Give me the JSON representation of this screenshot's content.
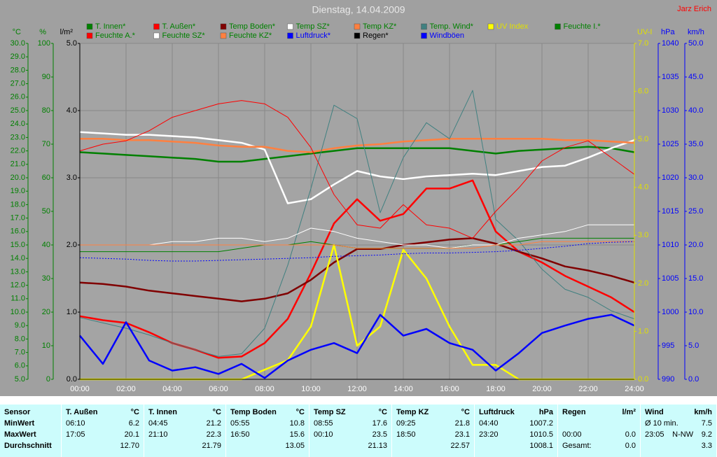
{
  "chart_data": {
    "type": "line",
    "title": "Dienstag, 14.04.2009",
    "author": "Jarz Erich",
    "x": [
      0,
      1,
      2,
      3,
      4,
      5,
      6,
      7,
      8,
      9,
      10,
      11,
      12,
      13,
      14,
      15,
      16,
      17,
      18,
      19,
      20,
      21,
      22,
      23,
      24
    ],
    "xlim": [
      0,
      24
    ],
    "xticks": [
      {
        "value": 0,
        "label": "00:00"
      },
      {
        "value": 2,
        "label": "02:00"
      },
      {
        "value": 4,
        "label": "04:00"
      },
      {
        "value": 6,
        "label": "06:00"
      },
      {
        "value": 8,
        "label": "08:00"
      },
      {
        "value": 10,
        "label": "10:00"
      },
      {
        "value": 12,
        "label": "12:00"
      },
      {
        "value": 14,
        "label": "14:00"
      },
      {
        "value": 16,
        "label": "16:00"
      },
      {
        "value": 18,
        "label": "18:00"
      },
      {
        "value": 20,
        "label": "20:00"
      },
      {
        "value": 22,
        "label": "22:00"
      },
      {
        "value": 24,
        "label": "24:00"
      }
    ],
    "grid": true,
    "axes": [
      {
        "label": "°C",
        "side": "left",
        "color": "#008000",
        "lim": [
          5,
          30
        ],
        "ticks": [
          {
            "value": 5,
            "label": "5.0"
          },
          {
            "value": 6,
            "label": "6.0"
          },
          {
            "value": 7,
            "label": "7.0"
          },
          {
            "value": 8,
            "label": "8.0"
          },
          {
            "value": 9,
            "label": "9.0"
          },
          {
            "value": 10,
            "label": "10.0"
          },
          {
            "value": 11,
            "label": "11.0"
          },
          {
            "value": 12,
            "label": "12.0"
          },
          {
            "value": 13,
            "label": "13.0"
          },
          {
            "value": 14,
            "label": "14.0"
          },
          {
            "value": 15,
            "label": "15.0"
          },
          {
            "value": 16,
            "label": "16.0"
          },
          {
            "value": 17,
            "label": "17.0"
          },
          {
            "value": 18,
            "label": "18.0"
          },
          {
            "value": 19,
            "label": "19.0"
          },
          {
            "value": 20,
            "label": "20.0"
          },
          {
            "value": 21,
            "label": "21.0"
          },
          {
            "value": 22,
            "label": "22.0"
          },
          {
            "value": 23,
            "label": "23.0"
          },
          {
            "value": 24,
            "label": "24.0"
          },
          {
            "value": 25,
            "label": "25.0"
          },
          {
            "value": 26,
            "label": "26.0"
          },
          {
            "value": 27,
            "label": "27.0"
          },
          {
            "value": 28,
            "label": "28.0"
          },
          {
            "value": 29,
            "label": "29.0"
          },
          {
            "value": 30,
            "label": "30.0"
          }
        ]
      },
      {
        "label": "%",
        "side": "left",
        "color": "#008000",
        "lim": [
          0,
          100
        ],
        "ticks": [
          0,
          10,
          20,
          30,
          40,
          50,
          60,
          70,
          80,
          90,
          100
        ]
      },
      {
        "label": "l/m²",
        "side": "left",
        "color": "#000000",
        "lim": [
          0,
          5
        ],
        "grid": true,
        "ticks": [
          {
            "value": 0,
            "label": "0.0"
          },
          {
            "value": 1,
            "label": "1.0"
          },
          {
            "value": 2,
            "label": "2.0"
          },
          {
            "value": 3,
            "label": "3.0"
          },
          {
            "value": 4,
            "label": "4.0"
          },
          {
            "value": 5,
            "label": "5.0"
          }
        ]
      },
      {
        "label": "UV-I",
        "side": "right",
        "color": "#e0e000",
        "lim": [
          0,
          7
        ],
        "ticks": [
          {
            "value": 0,
            "label": "0.0"
          },
          {
            "value": 1,
            "label": "1.0"
          },
          {
            "value": 2,
            "label": "2.0"
          },
          {
            "value": 3,
            "label": "3.0"
          },
          {
            "value": 4,
            "label": "4.0"
          },
          {
            "value": 5,
            "label": "5.0"
          },
          {
            "value": 6,
            "label": "6.0"
          },
          {
            "value": 7,
            "label": "7.0"
          }
        ]
      },
      {
        "label": "hPa",
        "side": "right",
        "color": "#0000ff",
        "lim": [
          990,
          1040
        ],
        "ticks": [
          990,
          995,
          1000,
          1005,
          1010,
          1015,
          1020,
          1025,
          1030,
          1035,
          1040
        ]
      },
      {
        "label": "km/h",
        "side": "right",
        "color": "#0000ff",
        "lim": [
          0,
          50
        ],
        "ticks": [
          {
            "value": 0,
            "label": "0.0"
          },
          {
            "value": 5,
            "label": "5.0"
          },
          {
            "value": 10,
            "label": "10.0"
          },
          {
            "value": 15,
            "label": "15.0"
          },
          {
            "value": 20,
            "label": "20.0"
          },
          {
            "value": 25,
            "label": "25.0"
          },
          {
            "value": 30,
            "label": "30.0"
          },
          {
            "value": 35,
            "label": "35.0"
          },
          {
            "value": 40,
            "label": "40.0"
          },
          {
            "value": 45,
            "label": "45.0"
          },
          {
            "value": 50,
            "label": "50.0"
          }
        ]
      }
    ],
    "series": [
      {
        "name": "T. Innen*",
        "color": "#008000",
        "axis": 0,
        "weight": "thick",
        "values": [
          21.9,
          21.8,
          21.7,
          21.6,
          21.5,
          21.4,
          21.2,
          21.2,
          21.4,
          21.6,
          21.8,
          22.0,
          22.2,
          22.2,
          22.2,
          22.2,
          22.2,
          22.0,
          21.8,
          22.0,
          22.1,
          22.2,
          22.3,
          22.2,
          21.9
        ]
      },
      {
        "name": "T. Außen*",
        "color": "#ff0000",
        "axis": 0,
        "weight": "thick",
        "values": [
          9.7,
          9.4,
          9.2,
          8.5,
          7.7,
          7.2,
          6.6,
          6.7,
          7.7,
          9.5,
          12.9,
          16.6,
          18.4,
          16.8,
          17.3,
          19.2,
          19.2,
          19.8,
          16.0,
          14.5,
          13.7,
          12.7,
          11.9,
          11.1,
          10.0
        ]
      },
      {
        "name": "Temp Boden*",
        "color": "#800000",
        "axis": 0,
        "weight": "thick",
        "values": [
          12.2,
          12.1,
          11.9,
          11.6,
          11.4,
          11.2,
          11.0,
          10.8,
          11.0,
          11.4,
          12.4,
          13.7,
          14.7,
          14.7,
          15.0,
          15.2,
          15.4,
          15.5,
          15.1,
          14.5,
          14.0,
          13.4,
          13.1,
          12.7,
          12.2
        ]
      },
      {
        "name": "Temp SZ*",
        "color": "#ffffff",
        "axis": 0,
        "weight": "thick",
        "values": [
          23.4,
          23.3,
          23.2,
          23.2,
          23.1,
          23.0,
          22.8,
          22.6,
          22.1,
          18.1,
          18.4,
          19.5,
          20.5,
          20.1,
          19.9,
          20.1,
          20.2,
          20.3,
          20.2,
          20.5,
          20.8,
          20.9,
          21.5,
          22.2,
          22.8
        ]
      },
      {
        "name": "Temp KZ*",
        "color": "#ff8040",
        "axis": 0,
        "weight": "thick",
        "values": [
          22.9,
          22.9,
          22.8,
          22.8,
          22.7,
          22.6,
          22.4,
          22.3,
          22.3,
          22.0,
          21.9,
          22.2,
          22.4,
          22.5,
          22.7,
          22.8,
          22.9,
          22.9,
          22.9,
          22.9,
          22.9,
          22.8,
          22.8,
          22.7,
          22.6
        ]
      },
      {
        "name": "Temp. Wind*",
        "color": "#408080",
        "axis": 0,
        "weight": "thin",
        "values": [
          9.6,
          9.2,
          8.8,
          8.3,
          7.7,
          7.2,
          6.7,
          6.9,
          8.8,
          13.5,
          19.2,
          25.4,
          24.4,
          17.4,
          21.5,
          24.1,
          22.9,
          26.5,
          16.9,
          15.3,
          13.2,
          11.7,
          11.1,
          10.1,
          9.5
        ]
      },
      {
        "name": "UV Index",
        "color": "#ffff00",
        "axis": 3,
        "weight": "thick",
        "values": [
          0,
          0,
          0,
          0,
          0,
          0,
          0,
          0,
          0.2,
          0.4,
          1.1,
          2.8,
          0.7,
          1.1,
          2.7,
          2.1,
          1.1,
          0.3,
          0.3,
          0,
          0,
          0,
          0,
          0,
          0
        ]
      },
      {
        "name": "Feuchte I.*",
        "color": "#008000",
        "axis": 1,
        "weight": "thin",
        "values": [
          38,
          38,
          38,
          38,
          38,
          38,
          38,
          39,
          40,
          40,
          41,
          40,
          39,
          39,
          39,
          39,
          39,
          40,
          40,
          41,
          42,
          42,
          42,
          42,
          42
        ]
      },
      {
        "name": "Feuchte A.*",
        "color": "#ff0000",
        "axis": 1,
        "weight": "thin",
        "values": [
          68,
          70,
          71,
          74,
          78,
          80,
          82,
          83,
          82,
          78,
          69,
          55,
          46,
          45,
          52,
          46,
          45,
          42,
          50,
          57,
          65,
          69,
          71,
          66,
          61
        ]
      },
      {
        "name": "Feuchte SZ*",
        "color": "#ffffff",
        "axis": 1,
        "weight": "thin",
        "values": [
          40,
          40,
          40,
          40,
          41,
          41,
          42,
          42,
          41,
          42,
          45,
          44,
          42,
          41,
          40,
          40,
          39,
          40,
          40,
          42,
          43,
          44,
          46,
          46,
          46
        ]
      },
      {
        "name": "Feuchte KZ*",
        "color": "#ff8040",
        "axis": 1,
        "weight": "thin",
        "values": [
          40,
          40,
          40,
          40,
          40,
          40,
          40,
          40,
          40,
          40,
          40,
          40,
          39,
          39,
          39,
          39,
          39,
          39,
          40,
          40,
          41,
          41,
          41,
          41,
          41
        ]
      },
      {
        "name": "Luftdruck*",
        "color": "#0000ff",
        "axis": 4,
        "weight": "dotted",
        "values": [
          1008.1,
          1008.0,
          1007.9,
          1007.7,
          1007.6,
          1007.6,
          1007.7,
          1007.8,
          1007.9,
          1008.0,
          1008.1,
          1008.3,
          1008.4,
          1008.5,
          1008.7,
          1008.8,
          1008.8,
          1008.9,
          1009.0,
          1009.2,
          1009.5,
          1009.8,
          1010.2,
          1010.4,
          1010.5
        ]
      },
      {
        "name": "Regen*",
        "color": "#000000",
        "axis": 2,
        "weight": "thin",
        "values": [
          0,
          0,
          0,
          0,
          0,
          0,
          0,
          0,
          0,
          0,
          0,
          0,
          0,
          0,
          0,
          0,
          0,
          0,
          0,
          0,
          0,
          0,
          0,
          0,
          0
        ]
      },
      {
        "name": "Windböen",
        "color": "#0000ff",
        "axis": 5,
        "weight": "thick",
        "values": [
          6.5,
          2.3,
          8.5,
          2.8,
          1.3,
          1.8,
          0.8,
          2.3,
          0.2,
          2.8,
          4.4,
          5.4,
          3.9,
          9.6,
          6.5,
          7.5,
          5.4,
          4.4,
          1.3,
          3.9,
          6.9,
          8.0,
          9.0,
          9.6,
          8.0
        ]
      }
    ]
  },
  "summary_table": {
    "row_labels": [
      "Sensor",
      "MinWert",
      "MaxWert",
      "Durchschnitt"
    ],
    "columns": [
      {
        "header": "T. Außen",
        "unit": "°C",
        "min": [
          "06:10",
          "6.2"
        ],
        "max": [
          "17:05",
          "20.1"
        ],
        "avg": [
          "12.70"
        ]
      },
      {
        "header": "T. Innen",
        "unit": "°C",
        "min": [
          "04:45",
          "21.2"
        ],
        "max": [
          "21:10",
          "22.3"
        ],
        "avg": [
          "21.79"
        ]
      },
      {
        "header": "Temp Boden",
        "unit": "°C",
        "min": [
          "05:55",
          "10.8"
        ],
        "max": [
          "16:50",
          "15.6"
        ],
        "avg": [
          "13.05"
        ]
      },
      {
        "header": "Temp SZ",
        "unit": "°C",
        "min": [
          "08:55",
          "17.6"
        ],
        "max": [
          "00:10",
          "23.5"
        ],
        "avg": [
          "21.13"
        ]
      },
      {
        "header": "Temp KZ",
        "unit": "°C",
        "min": [
          "09:25",
          "21.8"
        ],
        "max": [
          "18:50",
          "23.1"
        ],
        "avg": [
          "22.57"
        ]
      },
      {
        "header": "Luftdruck",
        "unit": "hPa",
        "min": [
          "04:40",
          "1007.2"
        ],
        "max": [
          "23:20",
          "1010.5"
        ],
        "avg": [
          "1008.1"
        ]
      },
      {
        "header": "Regen",
        "unit": "l/m²",
        "max": [
          "00:00",
          "0.0"
        ],
        "avg": [
          "Gesamt:",
          "0.0"
        ]
      },
      {
        "header": "Wind",
        "unit": "km/h",
        "min": [
          "Ø 10 min.",
          "7.5"
        ],
        "max": [
          "23:05",
          "N-NW",
          "9.2"
        ],
        "avg": [
          "3.3"
        ]
      }
    ]
  }
}
